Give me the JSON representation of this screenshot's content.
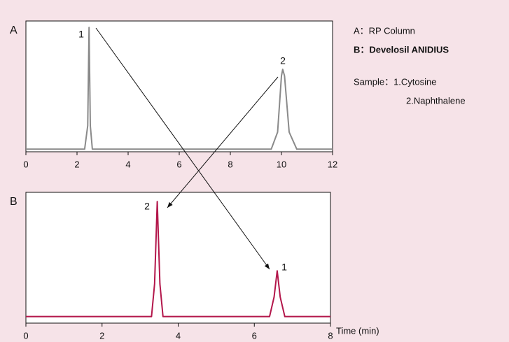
{
  "chart_data": [
    {
      "type": "line",
      "title": "A",
      "color": "#8a8a8a",
      "x": [
        0,
        2.3,
        2.42,
        2.47,
        2.52,
        2.6,
        9.6,
        9.85,
        10.0,
        10.05,
        10.12,
        10.3,
        10.6,
        12
      ],
      "values": [
        2,
        2,
        20,
        95,
        20,
        2,
        2,
        15,
        58,
        63,
        58,
        15,
        2,
        2
      ],
      "peak_labels": [
        "1",
        "2"
      ],
      "xlim": [
        0,
        12
      ],
      "xticks": [
        0,
        2,
        4,
        6,
        8,
        10,
        12
      ],
      "ylim": [
        0,
        100
      ]
    },
    {
      "type": "line",
      "title": "B",
      "color": "#b3174b",
      "xlabel": "Time (min)",
      "x": [
        0,
        3.3,
        3.38,
        3.45,
        3.52,
        3.6,
        6.4,
        6.52,
        6.6,
        6.68,
        6.8,
        8
      ],
      "values": [
        5,
        5,
        30,
        93,
        30,
        5,
        5,
        20,
        40,
        20,
        5,
        5
      ],
      "peak_labels": [
        "2",
        "1"
      ],
      "xlim": [
        0,
        8
      ],
      "xticks": [
        0,
        2,
        4,
        6,
        8
      ],
      "ylim": [
        0,
        100
      ]
    }
  ],
  "key": {
    "lines": [
      "A：RP Column",
      "B：Develosil ANIDIUS",
      "Sample：1.Cytosine",
      "2.Naphthalene"
    ]
  }
}
